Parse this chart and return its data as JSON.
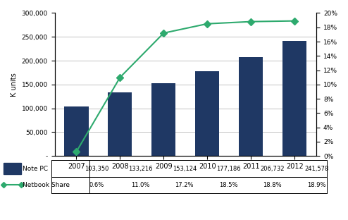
{
  "years": [
    2007,
    2008,
    2009,
    2010,
    2011,
    2012
  ],
  "note_pc": [
    103350,
    133216,
    153124,
    177186,
    206732,
    241578
  ],
  "netbook_share": [
    0.6,
    11.0,
    17.2,
    18.5,
    18.8,
    18.9
  ],
  "bar_color": "#1F3864",
  "line_color": "#2EAA6E",
  "left_ylabel": "K units",
  "left_ylim": [
    0,
    300000
  ],
  "left_yticks": [
    0,
    50000,
    100000,
    150000,
    200000,
    250000,
    300000
  ],
  "right_ylim": [
    0,
    20
  ],
  "right_yticks": [
    0,
    2,
    4,
    6,
    8,
    10,
    12,
    14,
    16,
    18,
    20
  ],
  "legend_note_pc": "Note PC",
  "legend_netbook": "Netbook Share",
  "note_pc_values": [
    "103,350",
    "133,216",
    "153,124",
    "177,186",
    "206,732",
    "241,578"
  ],
  "netbook_values": [
    "0.6%",
    "11.0%",
    "17.2%",
    "18.5%",
    "18.8%",
    "18.9%"
  ],
  "background_color": "#ffffff",
  "grid_color": "#aaaaaa"
}
